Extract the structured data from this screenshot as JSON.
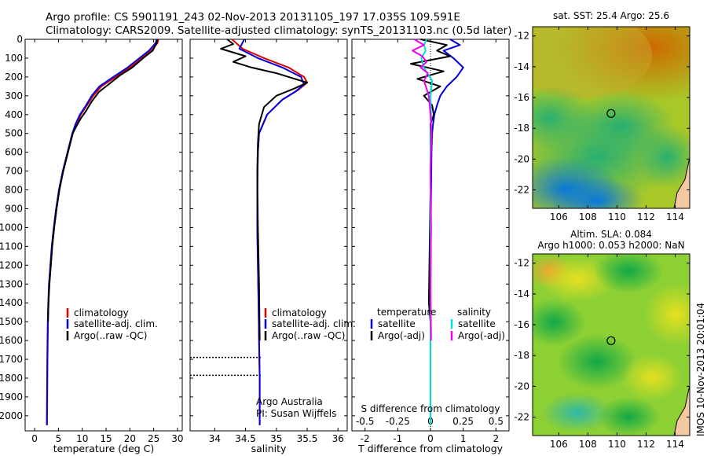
{
  "header": {
    "line1": "Argo profile: CS 5901191_243 02-Nov-2013 20131105_197 17.035S 109.591E",
    "line2": "Climatology: CARS2009. Satellite-adjusted climatology: synTS_20131103.nc (0.5d later)"
  },
  "side_label": "IMOS 10-Nov-2013 20:01:04",
  "colors": {
    "climatology": "#dd0000",
    "satellite": "#0000dd",
    "argo": "#000000",
    "salinity_satellite": "#00dddd",
    "salinity_argo": "#ee00ee"
  },
  "chart_data": [
    {
      "id": "temperature",
      "type": "line",
      "xlabel": "temperature (deg C)",
      "ylabel": "",
      "xlim": [
        -2,
        31
      ],
      "ylim": [
        2080,
        0
      ],
      "xticks": [
        0,
        5,
        10,
        15,
        20,
        25,
        30
      ],
      "yticks": [
        0,
        100,
        200,
        300,
        400,
        500,
        600,
        700,
        800,
        900,
        1000,
        1100,
        1200,
        1300,
        1400,
        1500,
        1600,
        1700,
        1800,
        1900,
        2000
      ],
      "legend": [
        "climatology",
        "satellite-adj. clim.",
        "Argo(..raw -QC)"
      ],
      "series": [
        {
          "name": "climatology",
          "color": "#dd0000",
          "x": [
            26.0,
            25.8,
            24.5,
            22.5,
            20.0,
            17.0,
            14.0,
            12.3,
            11.0,
            9.7,
            8.8,
            8.0,
            7.0,
            6.0,
            5.2,
            4.6,
            4.1,
            3.7,
            3.4,
            3.1,
            2.9,
            2.8,
            2.7,
            2.6
          ],
          "y": [
            0,
            20,
            60,
            100,
            150,
            200,
            250,
            300,
            350,
            400,
            450,
            500,
            600,
            700,
            800,
            900,
            1000,
            1100,
            1200,
            1300,
            1400,
            1500,
            1700,
            2050
          ]
        },
        {
          "name": "satellite-adj. clim.",
          "color": "#0000dd",
          "x": [
            25.6,
            25.4,
            24.0,
            22.0,
            19.5,
            16.5,
            13.6,
            12.0,
            10.8,
            9.5,
            8.6,
            7.9,
            6.9,
            5.9,
            5.1,
            4.5,
            4.0,
            3.6,
            3.3,
            3.0,
            2.85,
            2.75,
            2.65,
            2.55
          ],
          "y": [
            0,
            20,
            60,
            100,
            150,
            200,
            250,
            300,
            350,
            400,
            450,
            500,
            600,
            700,
            800,
            900,
            1000,
            1100,
            1200,
            1300,
            1400,
            1500,
            1700,
            2050
          ]
        },
        {
          "name": "Argo(..raw -QC)",
          "color": "#000000",
          "x": [
            25.8,
            25.6,
            24.8,
            22.8,
            20.5,
            18.0,
            16.0,
            13.5,
            12.0,
            10.8,
            9.7,
            8.8,
            8.0,
            7.0,
            6.0,
            5.2,
            4.6,
            4.1,
            3.7,
            3.4,
            3.1,
            2.9,
            2.8
          ],
          "y": [
            0,
            20,
            60,
            100,
            150,
            190,
            230,
            280,
            330,
            380,
            420,
            460,
            500,
            600,
            700,
            800,
            900,
            1000,
            1100,
            1200,
            1300,
            1400,
            1500
          ]
        }
      ]
    },
    {
      "id": "salinity",
      "type": "line",
      "xlabel": "salinity",
      "xlim": [
        33.6,
        36.15
      ],
      "ylim": [
        2080,
        0
      ],
      "xticks": [
        34,
        34.5,
        35,
        35.5,
        36
      ],
      "legend": [
        "climatology",
        "satellite-adj. clim.",
        "Argo(..raw -QC)"
      ],
      "annotation": [
        "Argo Australia",
        "PI: Susan Wijffels"
      ],
      "series": [
        {
          "name": "climatology",
          "color": "#dd0000",
          "x": [
            34.28,
            34.45,
            34.8,
            35.2,
            35.45,
            35.5,
            35.35,
            35.1,
            34.85,
            34.72,
            34.7,
            34.69,
            34.69,
            34.7,
            34.71,
            34.72,
            34.73,
            34.73
          ],
          "y": [
            0,
            50,
            100,
            150,
            200,
            230,
            270,
            320,
            400,
            500,
            600,
            800,
            1000,
            1200,
            1400,
            1600,
            1800,
            2050
          ]
        },
        {
          "name": "satellite-adj. clim.",
          "color": "#0000dd",
          "x": [
            34.48,
            34.4,
            34.7,
            35.1,
            35.4,
            35.45,
            35.3,
            35.1,
            34.85,
            34.72,
            34.7,
            34.69,
            34.69,
            34.7,
            34.71,
            34.72,
            34.73,
            34.73
          ],
          "y": [
            0,
            50,
            100,
            150,
            200,
            240,
            280,
            320,
            400,
            500,
            600,
            800,
            1000,
            1200,
            1400,
            1600,
            1800,
            2050
          ]
        },
        {
          "name": "Argo(..raw -QC)",
          "color": "#000000",
          "x": [
            34.2,
            34.3,
            34.1,
            34.5,
            34.3,
            34.6,
            35.0,
            35.3,
            35.5,
            35.3,
            35.0,
            34.8,
            34.72,
            34.7,
            34.69,
            34.7,
            34.72,
            34.73
          ],
          "y": [
            0,
            25,
            50,
            90,
            120,
            150,
            180,
            210,
            230,
            260,
            300,
            360,
            450,
            550,
            700,
            1000,
            1300,
            1600
          ]
        }
      ],
      "dotted_marks": [
        {
          "x": [
            33.6,
            34.75
          ],
          "y": 1690
        },
        {
          "x": [
            33.6,
            34.75
          ],
          "y": 1785
        }
      ]
    },
    {
      "id": "difference",
      "type": "line",
      "xlabel": "T difference from climatology",
      "xlabel_top": "S difference from climatology",
      "xlim": [
        -2.4,
        2.4
      ],
      "ylim": [
        2080,
        0
      ],
      "xticks": [
        -2,
        -1,
        0,
        1,
        2
      ],
      "xticks_top": [
        -0.5,
        -0.25,
        0,
        0.25,
        0.5
      ],
      "legend_headers": [
        "temperature",
        "salinity"
      ],
      "legend": [
        "satellite",
        "Argo(-adj)",
        "satellite",
        "Argo(-adj)"
      ],
      "series": [
        {
          "name": "satellite",
          "group": "temperature",
          "color": "#0000dd",
          "x": [
            0.6,
            0.9,
            0.4,
            0.7,
            1.0,
            0.8,
            0.5,
            0.3,
            0.2,
            0.12,
            0.08,
            0.05,
            0.03,
            0.02,
            0.01,
            0.0,
            0.0
          ],
          "y": [
            0,
            30,
            60,
            100,
            150,
            200,
            250,
            300,
            350,
            400,
            450,
            500,
            600,
            800,
            1000,
            1500,
            2050
          ]
        },
        {
          "name": "Argo(-adj)",
          "group": "temperature",
          "color": "#000000",
          "x": [
            -0.3,
            0.5,
            0.2,
            0.6,
            -0.6,
            0.4,
            -0.4,
            0.3,
            -0.2,
            0.05,
            0.1,
            0.0,
            0.0,
            0.0,
            -0.05,
            0.0
          ],
          "y": [
            0,
            30,
            60,
            90,
            130,
            170,
            210,
            250,
            300,
            350,
            400,
            450,
            500,
            800,
            1400,
            1500
          ]
        },
        {
          "name": "satellite",
          "group": "salinity",
          "color": "#00dddd",
          "x": [
            -0.12,
            -0.2,
            -0.15,
            -0.28,
            -0.2,
            0.05,
            0.0,
            0.02,
            0.0,
            0.0,
            0.0
          ],
          "y": [
            0,
            30,
            60,
            100,
            150,
            220,
            300,
            400,
            600,
            1000,
            2050
          ]
        },
        {
          "name": "Argo(-adj)",
          "group": "salinity",
          "color": "#ee00ee",
          "x": [
            -0.5,
            -0.2,
            -0.55,
            -0.25,
            -0.12,
            -0.3,
            -0.08,
            -0.2,
            -0.05,
            0.0,
            0.03,
            0.0,
            0.02,
            0.0,
            0.02
          ],
          "y": [
            0,
            30,
            60,
            90,
            120,
            150,
            180,
            220,
            300,
            400,
            500,
            700,
            1000,
            1300,
            1600
          ]
        }
      ]
    },
    {
      "id": "sst_map",
      "type": "heatmap",
      "title": "sat. SST: 25.4  Argo: 25.6",
      "xlim": [
        104.2,
        115.0
      ],
      "ylim": [
        -23.2,
        -11.4
      ],
      "xticks": [
        106,
        108,
        110,
        112,
        114
      ],
      "yticks": [
        -12,
        -14,
        -16,
        -18,
        -20,
        -22
      ],
      "marker": {
        "lon": 109.591,
        "lat": -17.035
      }
    },
    {
      "id": "sla_map",
      "type": "heatmap",
      "title": "Altim. SLA: 0.084",
      "subtitle": "Argo h1000: 0.053 h2000: NaN",
      "xlim": [
        104.2,
        115.0
      ],
      "ylim": [
        -23.2,
        -11.4
      ],
      "xticks": [
        106,
        108,
        110,
        112,
        114
      ],
      "yticks": [
        -12,
        -14,
        -16,
        -18,
        -20,
        -22
      ],
      "marker": {
        "lon": 109.591,
        "lat": -17.035
      }
    }
  ]
}
